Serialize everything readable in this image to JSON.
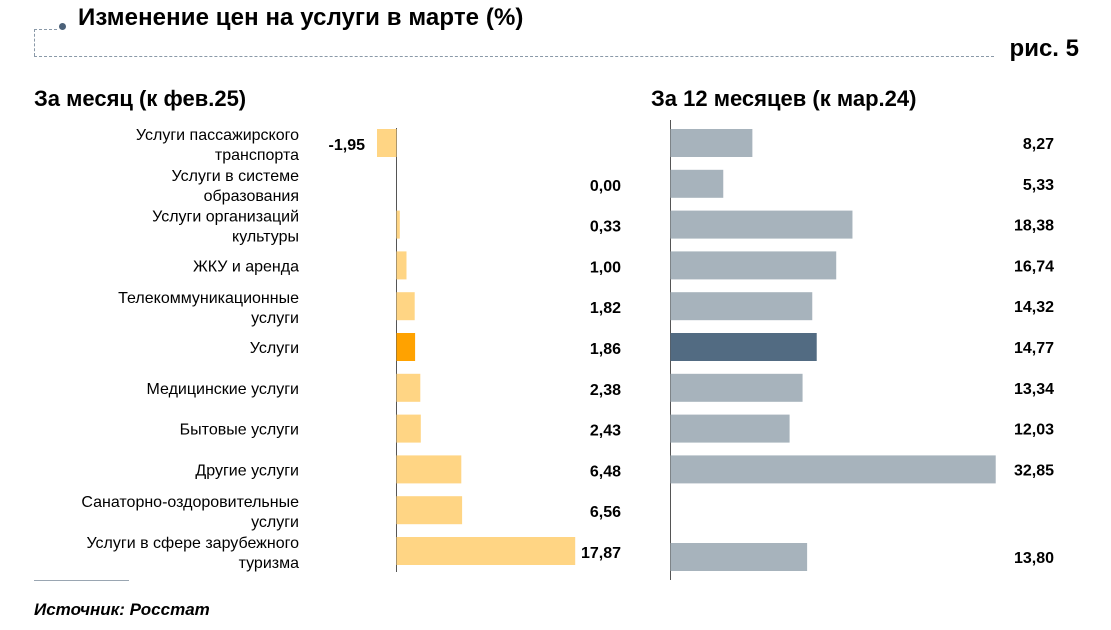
{
  "header": {
    "title": "Изменение цен на услуги в марте (%)",
    "figure_label": "рис. 5"
  },
  "source": "Источник: Росстат",
  "colors": {
    "month_bar": "#ffd584",
    "month_highlight": "#ffa200",
    "year_bar": "#a7b3bc",
    "year_highlight": "#526b82",
    "axis": "#555555",
    "title_dot": "#4b6179"
  },
  "chart_data": [
    {
      "type": "bar",
      "orientation": "horizontal",
      "title": "За месяц (к фев.25)",
      "categories": [
        "Услуги пассажирского транспорта",
        "Услуги в системе образования",
        "Услуги организаций культуры",
        "ЖКУ и аренда",
        "Телекоммуникационные услуги",
        "Услуги",
        "Медицинские услуги",
        "Бытовые услуги",
        "Другие услуги",
        "Санаторно-оздоровительные услуги",
        "Услуги в сфере зарубежного туризма"
      ],
      "values": [
        -1.95,
        0.0,
        0.33,
        1.0,
        1.82,
        1.86,
        2.38,
        2.43,
        6.48,
        6.56,
        17.87
      ],
      "labels": [
        "-1,95",
        "0,00",
        "0,33",
        "1,00",
        "1,82",
        "1,86",
        "2,38",
        "2,43",
        "6,48",
        "6,56",
        "17,87"
      ],
      "highlight": "Услуги",
      "xlim": [
        -2,
        18
      ]
    },
    {
      "type": "bar",
      "orientation": "horizontal",
      "title": "За 12 месяцев (к мар.24)",
      "categories": [
        "Услуги пассажирского транспорта",
        "Услуги в системе образования",
        "Услуги организаций культуры",
        "ЖКУ и аренда",
        "Телекоммуникационные услуги",
        "Услуги",
        "Медицинские услуги",
        "Бытовые услуги",
        "Другие услуги",
        "Санаторно-оздоровительные услуги",
        "Услуги в сфере зарубежного туризма"
      ],
      "values": [
        8.27,
        5.33,
        18.38,
        16.74,
        14.32,
        14.77,
        13.34,
        12.03,
        32.85,
        null,
        13.8
      ],
      "labels": [
        "8,27",
        "5,33",
        "18,38",
        "16,74",
        "14,32",
        "14,77",
        "13,34",
        "12,03",
        "32,85",
        "",
        "13,80"
      ],
      "highlight": "Услуги",
      "xlim": [
        0,
        33
      ]
    }
  ]
}
